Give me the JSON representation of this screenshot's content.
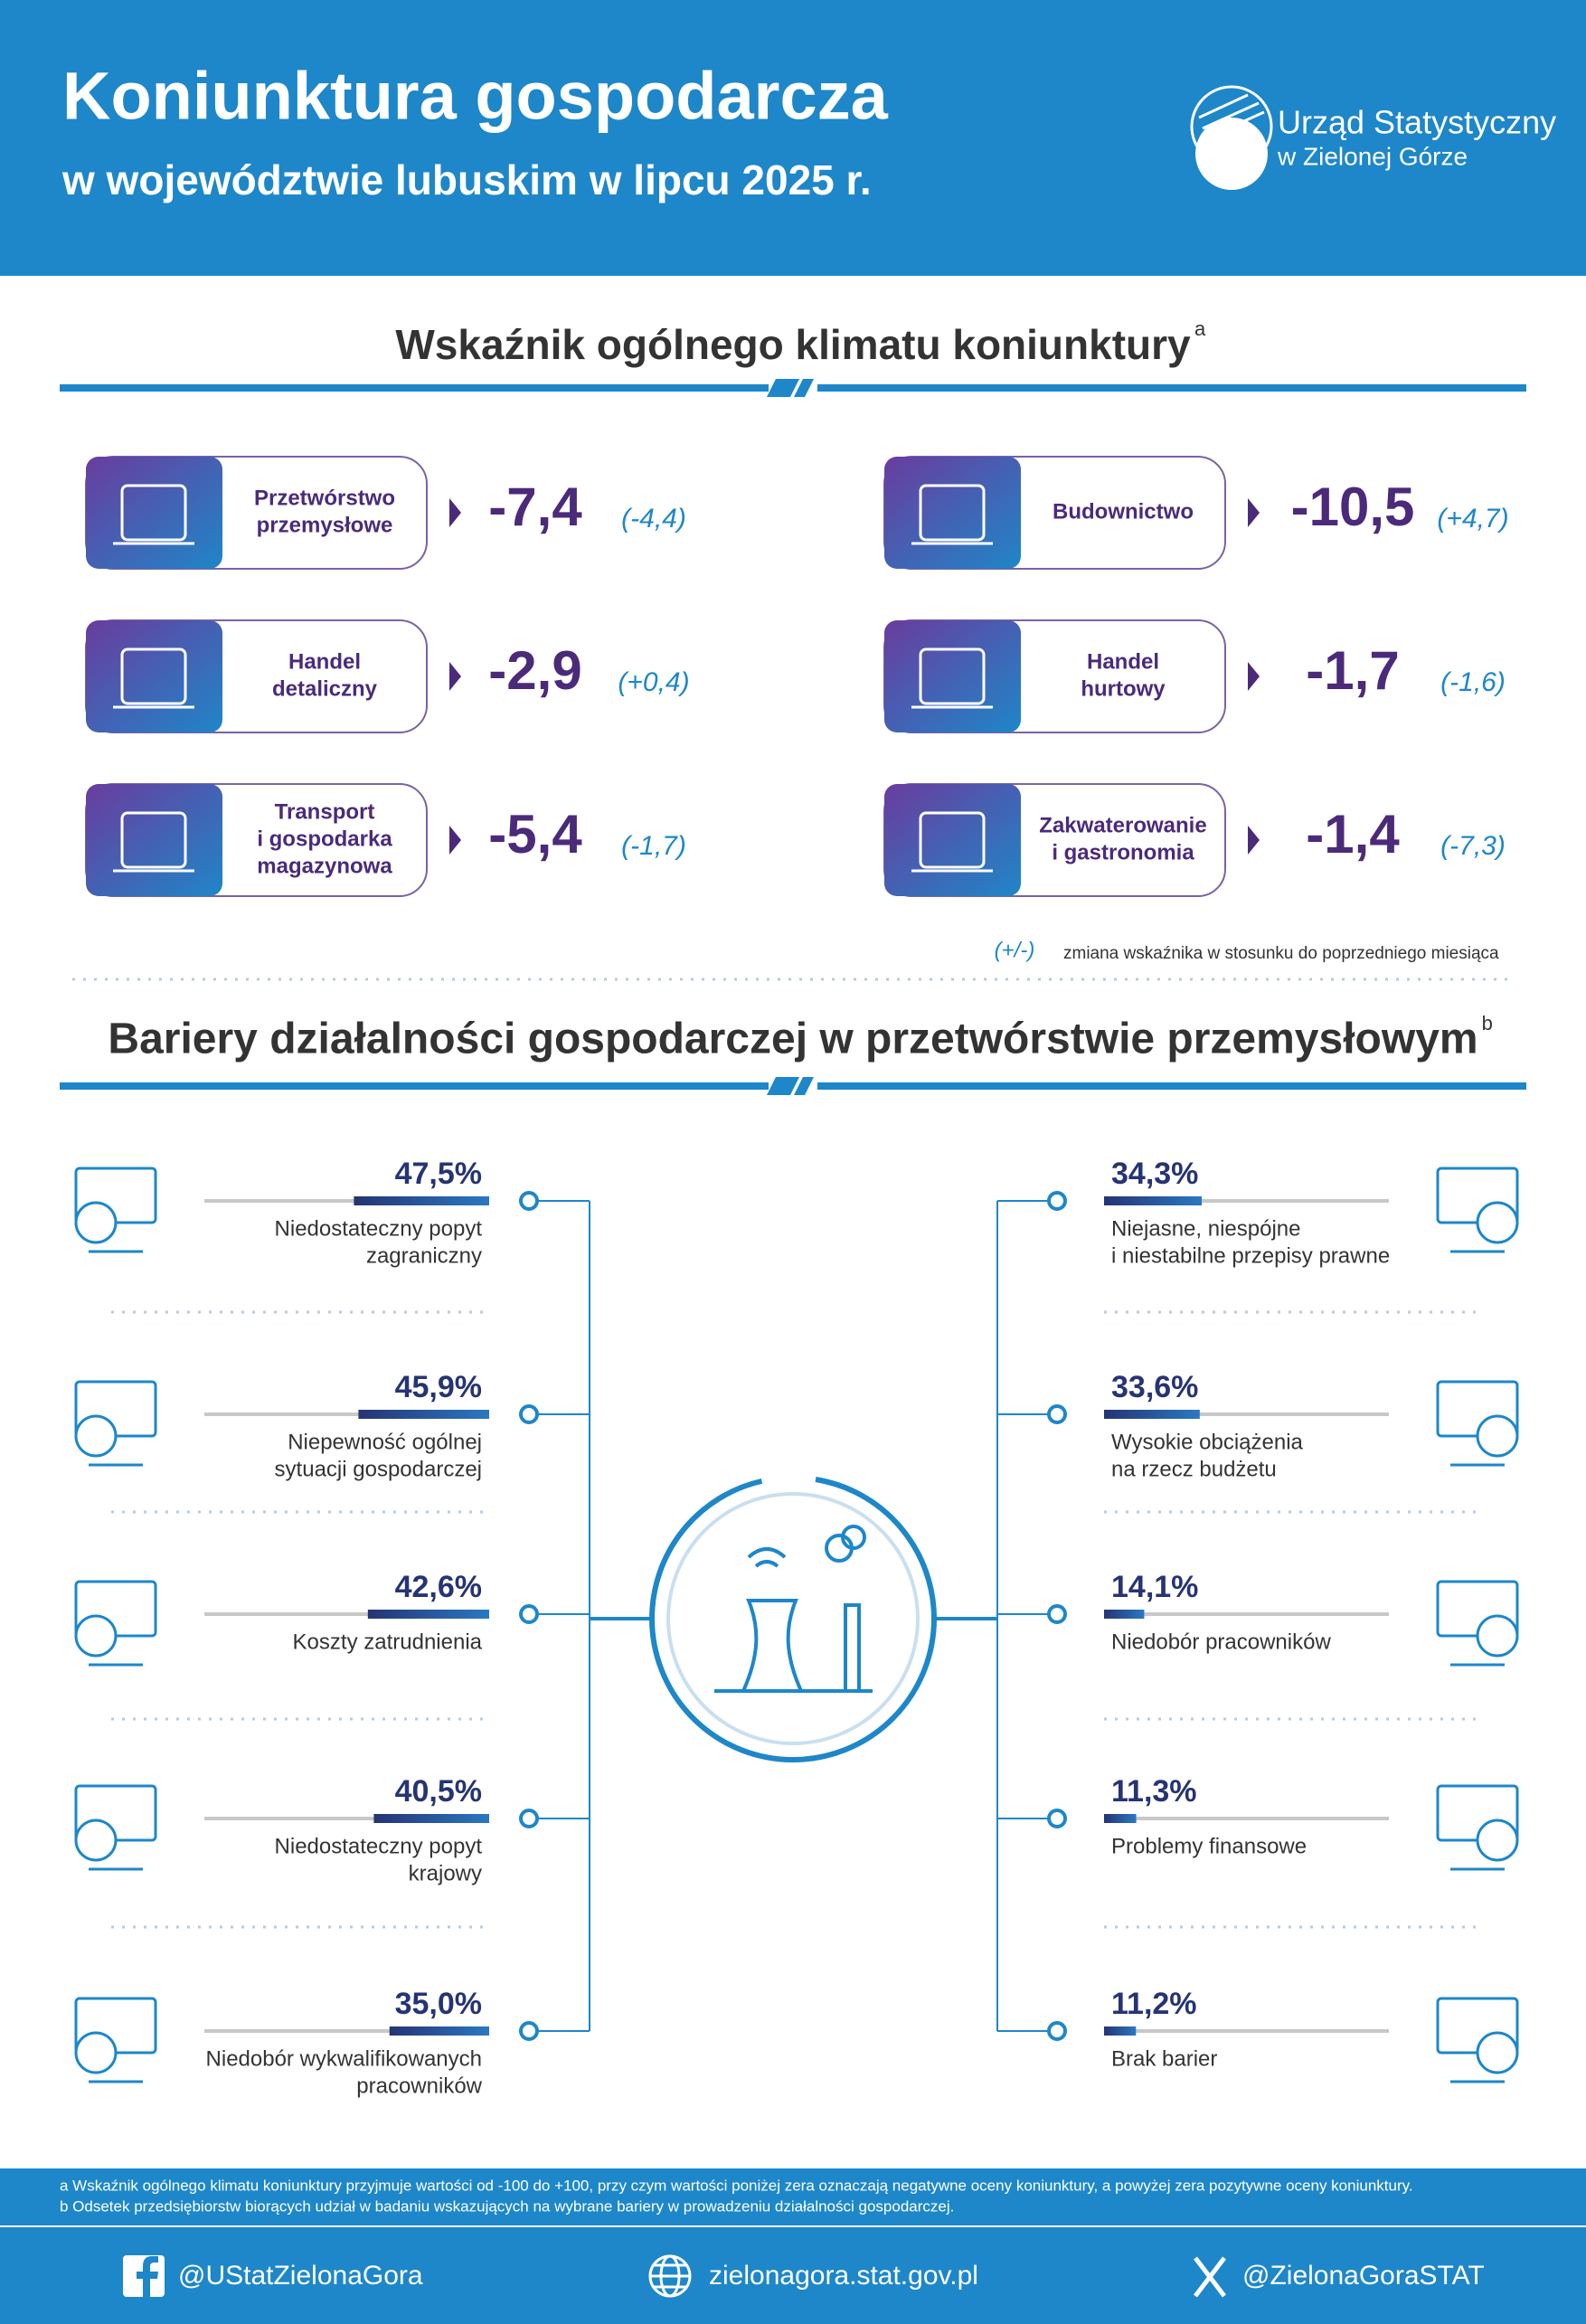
{
  "header": {
    "title": "Koniunktura gospodarcza",
    "subtitle": "w województwie lubuskim w lipcu 2025 r.",
    "logo": [
      "Urząd Statystyczny",
      "w Zielonej Górze"
    ]
  },
  "climate": {
    "title": "Wskaźnik ogólnego klimatu koniunktury",
    "note_mark": "a",
    "items": [
      {
        "label": [
          "Przetwórstwo",
          "przemysłowe"
        ],
        "value": "-7,4",
        "change": "(-4,4)"
      },
      {
        "label": [
          "Budownictwo"
        ],
        "value": "-10,5",
        "change": "(+4,7)"
      },
      {
        "label": [
          "Handel",
          "detaliczny"
        ],
        "value": "-2,9",
        "change": "(+0,4)"
      },
      {
        "label": [
          "Handel",
          "hurtowy"
        ],
        "value": "-1,7",
        "change": "(-1,6)"
      },
      {
        "label": [
          "Transport",
          "i gospodarka",
          "magazynowa"
        ],
        "value": "-5,4",
        "change": "(-1,7)"
      },
      {
        "label": [
          "Zakwaterowanie",
          "i gastronomia"
        ],
        "value": "-1,4",
        "change": "(-7,3)"
      }
    ],
    "legend": {
      "symbol": "(+/-)",
      "text": "zmiana wskaźnika w stosunku do poprzedniego miesiąca"
    }
  },
  "barriers": {
    "title": "Bariery działalności gospodarczej w przetwórstwie przemysłowym",
    "note_mark": "b",
    "items": [
      {
        "value": 47.5,
        "value_label": "47,5%",
        "label": [
          "Niedostateczny popyt",
          "zagraniczny"
        ]
      },
      {
        "value": 45.9,
        "value_label": "45,9%",
        "label": [
          "Niepewność ogólnej",
          "sytuacji gospodarczej"
        ]
      },
      {
        "value": 42.6,
        "value_label": "42,6%",
        "label": [
          "Koszty zatrudnienia"
        ]
      },
      {
        "value": 40.5,
        "value_label": "40,5%",
        "label": [
          "Niedostateczny popyt",
          "krajowy"
        ]
      },
      {
        "value": 35.0,
        "value_label": "35,0%",
        "label": [
          "Niedobór wykwalifikowanych",
          "pracowników"
        ]
      },
      {
        "value": 34.3,
        "value_label": "34,3%",
        "label": [
          "Niejasne, niespójne",
          "i niestabilne przepisy prawne"
        ]
      },
      {
        "value": 33.6,
        "value_label": "33,6%",
        "label": [
          "Wysokie obciążenia",
          "na rzecz budżetu"
        ]
      },
      {
        "value": 14.1,
        "value_label": "14,1%",
        "label": [
          "Niedobór pracowników"
        ]
      },
      {
        "value": 11.3,
        "value_label": "11,3%",
        "label": [
          "Problemy finansowe"
        ]
      },
      {
        "value": 11.2,
        "value_label": "11,2%",
        "label": [
          "Brak barier"
        ]
      }
    ]
  },
  "footnotes": [
    "a Wskaźnik ogólnego klimatu koniunktury przyjmuje wartości od -100 do +100, przy czym wartości poniżej zera oznaczają negatywne oceny koniunktury, a powyżej zera pozytywne oceny koniunktury.",
    "b Odsetek przedsiębiorstw biorących udział w badaniu wskazujących na wybrane bariery w prowadzeniu działalności gospodarczej."
  ],
  "social": [
    "@UStatZielonaGora",
    "zielonagora.stat.gov.pl",
    "@ZielonaGoraSTAT"
  ]
}
